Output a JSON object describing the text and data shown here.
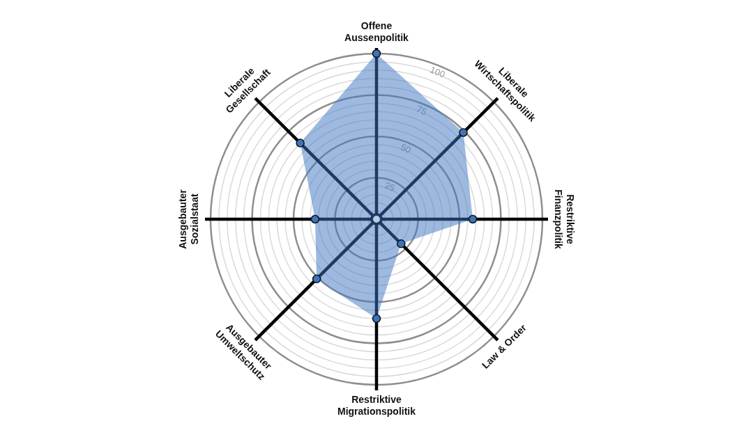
{
  "chart_data": {
    "type": "radar",
    "categories": [
      "Offene Aussenpolitik",
      "Liberale Wirtschaftspolitik",
      "Restriktive Finanzpolitik",
      "Law & Order",
      "Restriktive Migrationspolitik",
      "Ausgebauter Umweltschutz",
      "Ausgebauter Sozialstaat",
      "Liberale Gesellschaft"
    ],
    "series": [
      {
        "color": "#3b74c0",
        "values": [
          100,
          74,
          58,
          21,
          60,
          51,
          37,
          65
        ]
      }
    ],
    "ylim": [
      0,
      100
    ],
    "yticks": [
      25,
      50,
      75,
      100
    ],
    "grid": true,
    "legend": false,
    "marker": "circle"
  }
}
